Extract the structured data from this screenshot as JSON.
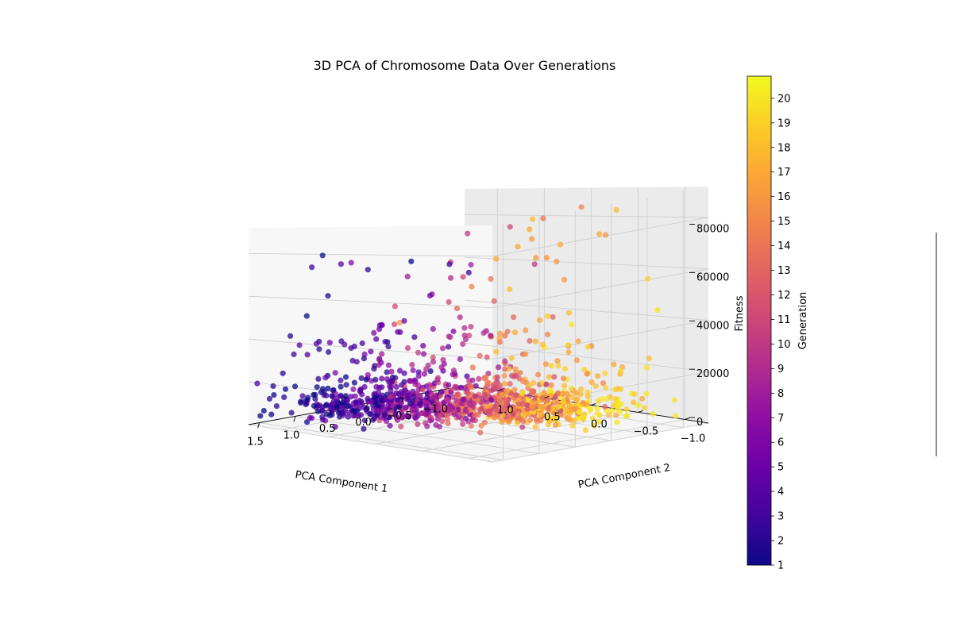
{
  "chart_data": {
    "type": "scatter",
    "title": "3D PCA of Chromosome Data Over Generations",
    "xlabel": "PCA Component 1",
    "ylabel": "PCA Component 2",
    "zlabel": "Fitness",
    "colorbar_label": "Generation",
    "colormap": "plasma",
    "xlim": [
      -1.35,
      1.65
    ],
    "ylim": [
      -1.25,
      1.35
    ],
    "zlim": [
      0,
      92000
    ],
    "x_ticks": [
      1.5,
      1.0,
      0.5,
      0.0,
      -0.5,
      -1.0
    ],
    "x_tick_labels": [
      "1.5",
      "1.0",
      "0.5",
      "0.0",
      "−0.5",
      "−1.0"
    ],
    "y_ticks": [
      1.0,
      0.5,
      0.0,
      -0.5,
      -1.0
    ],
    "y_tick_labels": [
      "1.0",
      "0.5",
      "0.0",
      "−0.5",
      "−1.0"
    ],
    "z_ticks": [
      0,
      20000,
      40000,
      60000,
      80000
    ],
    "z_tick_labels": [
      "0",
      "20000",
      "40000",
      "60000",
      "80000"
    ],
    "colorbar_range": [
      1,
      20.9
    ],
    "colorbar_ticks": [
      1,
      2,
      3,
      4,
      5,
      6,
      7,
      8,
      9,
      10,
      11,
      12,
      13,
      14,
      15,
      16,
      17,
      18,
      19,
      20
    ],
    "colorbar_tick_labels": [
      "1",
      "2",
      "3",
      "4",
      "5",
      "6",
      "7",
      "8",
      "9",
      "10",
      "11",
      "12",
      "13",
      "14",
      "15",
      "16",
      "17",
      "18",
      "19",
      "20"
    ],
    "grid": true,
    "generations": 20,
    "approx_points_per_generation": 60,
    "cluster_centers_by_generation": [
      {
        "generation": 1,
        "pc1": 0.8,
        "pc2": 1.0
      },
      {
        "generation": 5,
        "pc1": 0.65,
        "pc2": 0.7
      },
      {
        "generation": 10,
        "pc1": 0.25,
        "pc2": 0.3
      },
      {
        "generation": 15,
        "pc1": -0.15,
        "pc2": -0.15
      },
      {
        "generation": 20,
        "pc1": -0.5,
        "pc2": -0.55
      }
    ],
    "fitness_typical_range": [
      0,
      25000
    ],
    "fitness_max": 90000
  }
}
